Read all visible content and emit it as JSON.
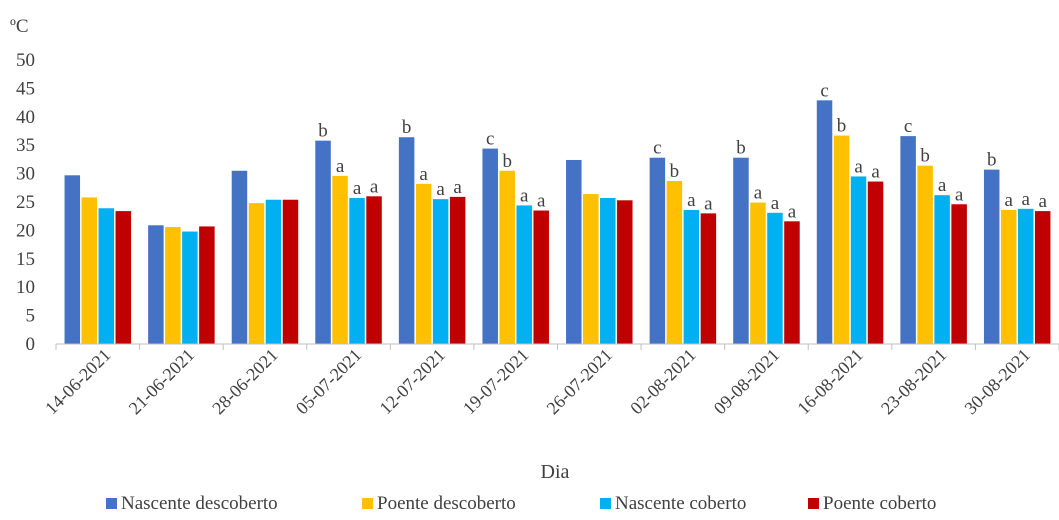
{
  "chart_data": {
    "type": "bar",
    "title": "",
    "ylabel": "ºC",
    "xlabel": "Dia",
    "ylim": [
      0,
      50
    ],
    "yticks": [
      0,
      5,
      10,
      15,
      20,
      25,
      30,
      35,
      40,
      45,
      50
    ],
    "grid": false,
    "legend_position": "bottom",
    "categories": [
      "14-06-2021",
      "21-06-2021",
      "28-06-2021",
      "05-07-2021",
      "12-07-2021",
      "19-07-2021",
      "26-07-2021",
      "02-08-2021",
      "09-08-2021",
      "16-08-2021",
      "23-08-2021",
      "30-08-2021"
    ],
    "series": [
      {
        "name": "Nascente descoberto",
        "color": "#4472C4",
        "values": [
          29.7,
          20.9,
          30.5,
          35.8,
          36.4,
          34.4,
          32.4,
          32.8,
          32.8,
          42.9,
          36.6,
          30.7
        ],
        "labels": [
          "",
          "",
          "",
          "b",
          "b",
          "c",
          "",
          "c",
          "b",
          "c",
          "c",
          "b"
        ]
      },
      {
        "name": "Poente descoberto",
        "color": "#FFC000",
        "values": [
          25.8,
          20.6,
          24.8,
          29.6,
          28.2,
          30.5,
          26.4,
          28.7,
          24.9,
          36.7,
          31.4,
          23.6
        ],
        "labels": [
          "",
          "",
          "",
          "a",
          "a",
          "b",
          "",
          "b",
          "a",
          "b",
          "b",
          "a"
        ]
      },
      {
        "name": "Nascente coberto",
        "color": "#00B0F0",
        "values": [
          23.9,
          19.8,
          25.4,
          25.7,
          25.5,
          24.4,
          25.7,
          23.6,
          23.1,
          29.5,
          26.2,
          23.8
        ],
        "labels": [
          "",
          "",
          "",
          "a",
          "a",
          "a",
          "",
          "a",
          "a",
          "a",
          "a",
          "a"
        ]
      },
      {
        "name": "Poente coberto",
        "color": "#C00000",
        "values": [
          23.4,
          20.7,
          25.4,
          26.0,
          25.9,
          23.5,
          25.3,
          23.0,
          21.6,
          28.6,
          24.6,
          23.4
        ],
        "labels": [
          "",
          "",
          "",
          "a",
          "a",
          "a",
          "",
          "a",
          "a",
          "a",
          "a",
          "a"
        ]
      }
    ]
  }
}
